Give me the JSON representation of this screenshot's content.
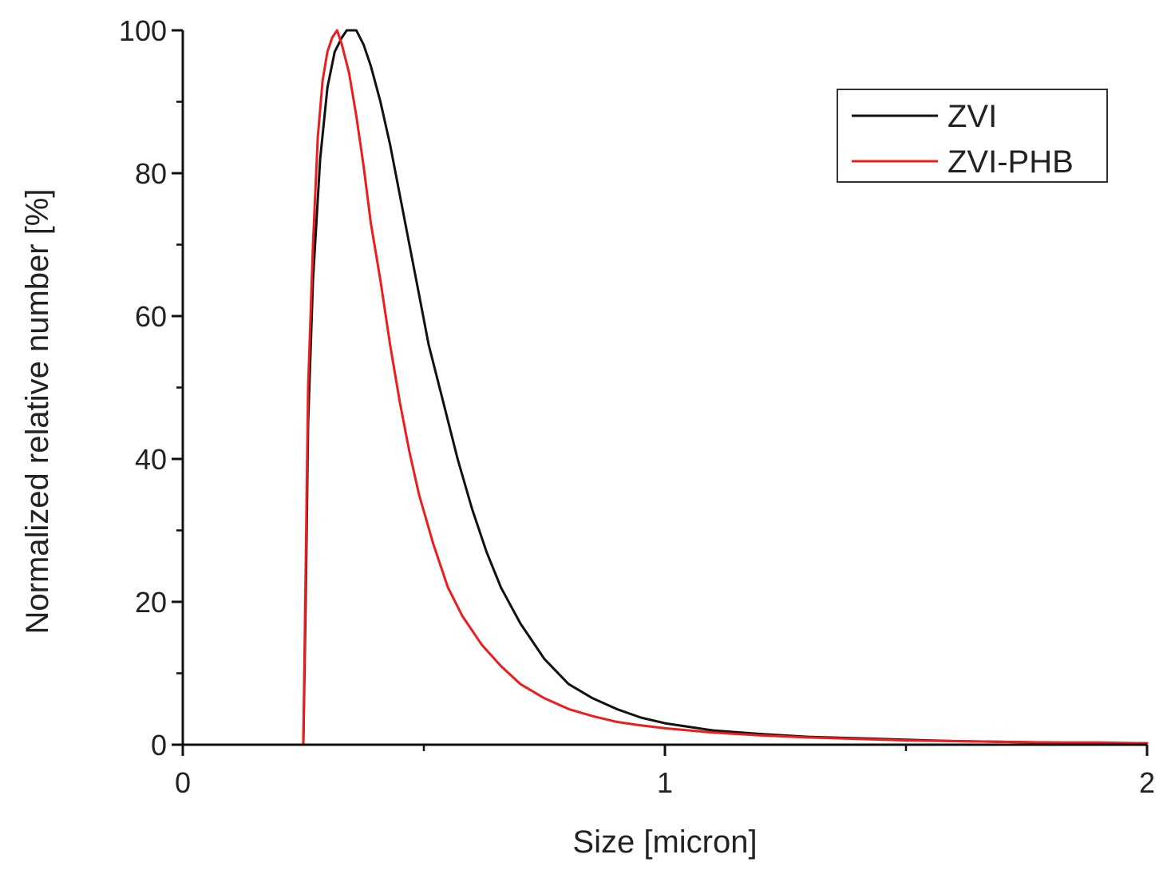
{
  "chart_data": {
    "type": "line",
    "xlabel": "Size [micron]",
    "ylabel": "Normalized relative number [%]",
    "xlim": [
      0,
      2
    ],
    "ylim": [
      0,
      100
    ],
    "x_ticks": [
      0,
      1,
      2
    ],
    "x_minor_ticks": [
      0.5,
      1.5
    ],
    "y_ticks": [
      0,
      20,
      40,
      60,
      80,
      100
    ],
    "y_minor_ticks": [
      10,
      30,
      50,
      70,
      90
    ],
    "legend_position": "top-right",
    "grid": false,
    "series": [
      {
        "name": "ZVI",
        "color": "#111111",
        "points": [
          [
            0.25,
            0
          ],
          [
            0.255,
            20
          ],
          [
            0.26,
            45
          ],
          [
            0.27,
            65
          ],
          [
            0.285,
            82
          ],
          [
            0.3,
            92
          ],
          [
            0.315,
            97
          ],
          [
            0.33,
            99
          ],
          [
            0.34,
            100
          ],
          [
            0.36,
            100
          ],
          [
            0.375,
            98
          ],
          [
            0.39,
            95
          ],
          [
            0.41,
            90
          ],
          [
            0.43,
            84
          ],
          [
            0.45,
            77
          ],
          [
            0.47,
            70
          ],
          [
            0.49,
            63
          ],
          [
            0.51,
            56
          ],
          [
            0.54,
            48
          ],
          [
            0.57,
            40
          ],
          [
            0.6,
            33
          ],
          [
            0.63,
            27
          ],
          [
            0.66,
            22
          ],
          [
            0.7,
            17
          ],
          [
            0.75,
            12
          ],
          [
            0.8,
            8.5
          ],
          [
            0.85,
            6.5
          ],
          [
            0.9,
            5
          ],
          [
            0.95,
            3.8
          ],
          [
            1.0,
            3
          ],
          [
            1.05,
            2.5
          ],
          [
            1.1,
            2
          ],
          [
            1.2,
            1.5
          ],
          [
            1.3,
            1.1
          ],
          [
            1.4,
            0.9
          ],
          [
            1.5,
            0.7
          ],
          [
            1.6,
            0.5
          ],
          [
            1.7,
            0.4
          ],
          [
            1.8,
            0.3
          ],
          [
            1.9,
            0.2
          ],
          [
            2.0,
            0.2
          ]
        ]
      },
      {
        "name": "ZVI-PHB",
        "color": "#ee1c1c",
        "points": [
          [
            0.25,
            0
          ],
          [
            0.255,
            25
          ],
          [
            0.26,
            50
          ],
          [
            0.27,
            70
          ],
          [
            0.28,
            85
          ],
          [
            0.29,
            93
          ],
          [
            0.3,
            97
          ],
          [
            0.31,
            99
          ],
          [
            0.32,
            100
          ],
          [
            0.33,
            98
          ],
          [
            0.345,
            94
          ],
          [
            0.36,
            88
          ],
          [
            0.375,
            81
          ],
          [
            0.39,
            73
          ],
          [
            0.41,
            65
          ],
          [
            0.43,
            56
          ],
          [
            0.45,
            48
          ],
          [
            0.47,
            41
          ],
          [
            0.49,
            35
          ],
          [
            0.52,
            28
          ],
          [
            0.55,
            22
          ],
          [
            0.58,
            18
          ],
          [
            0.62,
            14
          ],
          [
            0.66,
            11
          ],
          [
            0.7,
            8.5
          ],
          [
            0.75,
            6.5
          ],
          [
            0.8,
            5
          ],
          [
            0.85,
            4
          ],
          [
            0.9,
            3.2
          ],
          [
            0.95,
            2.7
          ],
          [
            1.0,
            2.3
          ],
          [
            1.1,
            1.7
          ],
          [
            1.2,
            1.3
          ],
          [
            1.3,
            1.0
          ],
          [
            1.4,
            0.8
          ],
          [
            1.5,
            0.6
          ],
          [
            1.6,
            0.5
          ],
          [
            1.7,
            0.4
          ],
          [
            1.8,
            0.3
          ],
          [
            1.9,
            0.3
          ],
          [
            2.0,
            0.2
          ]
        ]
      }
    ]
  }
}
